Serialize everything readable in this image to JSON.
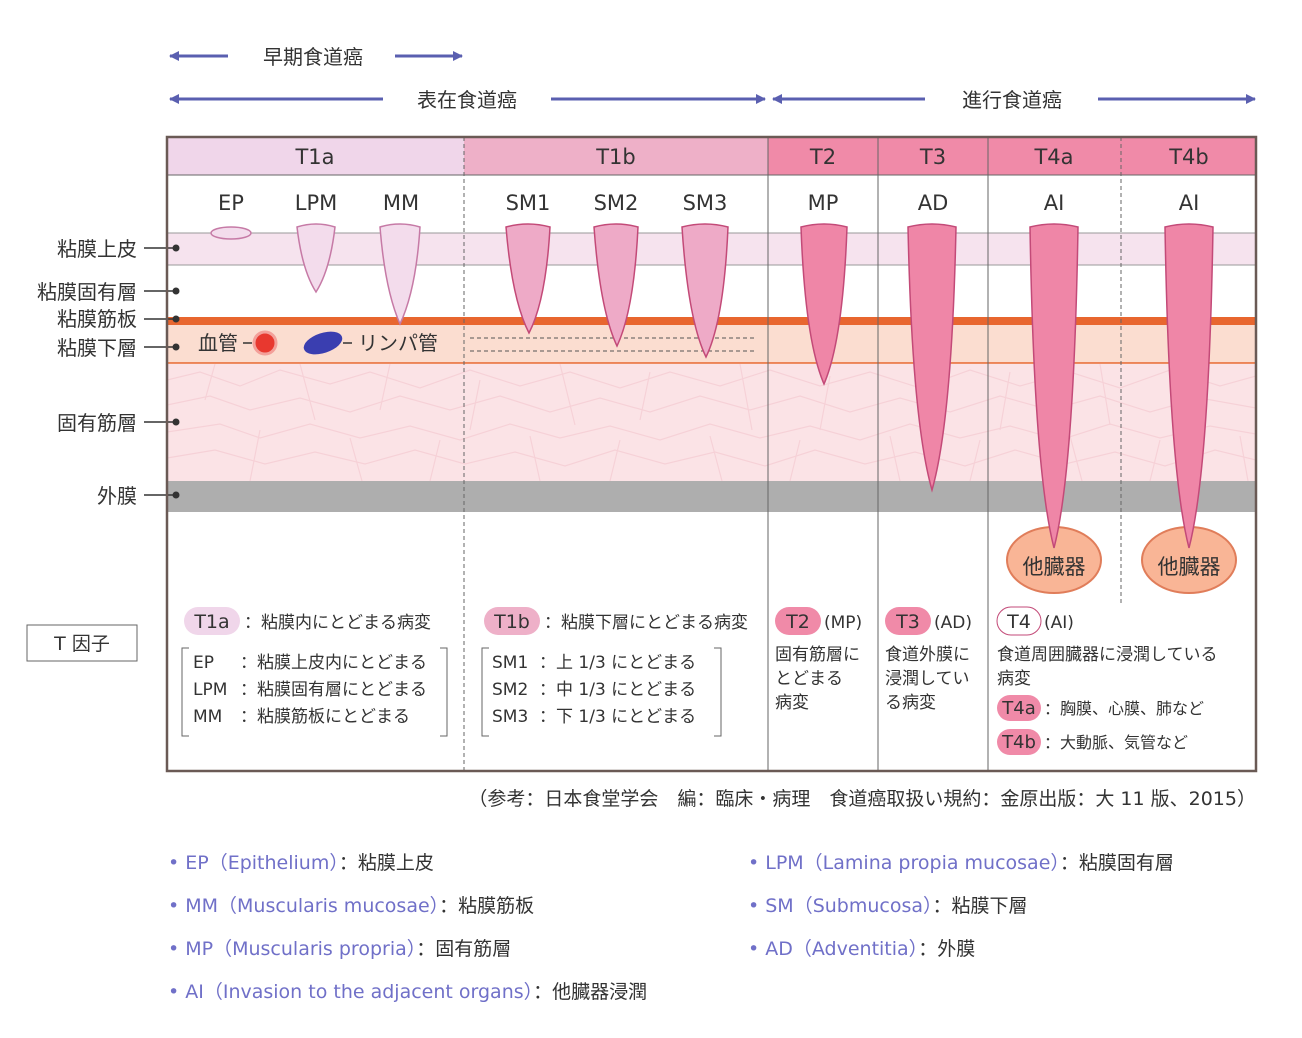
{
  "header": {
    "early_label": "早期食道癌",
    "superficial_label": "表在食道癌",
    "advanced_label": "進行食道癌"
  },
  "columns": {
    "t1a": "T1a",
    "t1b": "T1b",
    "t2": "T2",
    "t3": "T3",
    "t4a": "T4a",
    "t4b": "T4b"
  },
  "subheaders": {
    "ep": "EP",
    "lpm": "LPM",
    "mm": "MM",
    "sm1": "SM1",
    "sm2": "SM2",
    "sm3": "SM3",
    "mp": "MP",
    "ad": "AD",
    "ai_a": "AI",
    "ai_b": "AI"
  },
  "layers": {
    "epithelium": "粘膜上皮",
    "lamina_propria": "粘膜固有層",
    "muscularis_mucosae": "粘膜筋板",
    "submucosa": "粘膜下層",
    "muscularis_propria": "固有筋層",
    "adventitia": "外膜"
  },
  "vessels": {
    "blood": "血管",
    "lymph": "リンパ管"
  },
  "organ_label": "他臓器",
  "t_factor_label": "T 因子",
  "descriptions": {
    "t1a": {
      "badge": "T1a",
      "text": "：粘膜内にとどまる病変",
      "items": [
        {
          "code": "EP",
          "text": "：粘膜上皮内にとどまる"
        },
        {
          "code": "LPM",
          "text": "：粘膜固有層にとどまる"
        },
        {
          "code": "MM",
          "text": "：粘膜筋板にとどまる"
        }
      ]
    },
    "t1b": {
      "badge": "T1b",
      "text": "：粘膜下層にとどまる病変",
      "items": [
        {
          "code": "SM1",
          "text": "：上 1/3 にとどまる"
        },
        {
          "code": "SM2",
          "text": "：中 1/3 にとどまる"
        },
        {
          "code": "SM3",
          "text": "：下 1/3 にとどまる"
        }
      ]
    },
    "t2": {
      "badge": "T2",
      "abbr": "(MP)",
      "lines": [
        "固有筋層に",
        "とどまる",
        "病変"
      ]
    },
    "t3": {
      "badge": "T3",
      "abbr": "(AD)",
      "lines": [
        "食道外膜に",
        "浸潤してい",
        "る病変"
      ]
    },
    "t4": {
      "badge": "T4",
      "abbr": "(AI)",
      "lines": [
        "食道周囲臓器に浸潤している",
        "病変"
      ],
      "t4a_badge": "T4a",
      "t4a_text": "：胸膜、心膜、肺など",
      "t4b_badge": "T4b",
      "t4b_text": "：大動脈、気管など"
    }
  },
  "reference": "（参考：日本食堂学会　編：臨床・病理　食道癌取扱い規約：金原出版：大 11 版、2015）",
  "glossary": [
    {
      "term": "EP（Epithelium）",
      "meaning": "：粘膜上皮"
    },
    {
      "term": "LPM（Lamina propia mucosae）",
      "meaning": "：粘膜固有層"
    },
    {
      "term": "MM（Muscularis mucosae）",
      "meaning": "：粘膜筋板"
    },
    {
      "term": "SM（Submucosa）",
      "meaning": "：粘膜下層"
    },
    {
      "term": "MP（Muscularis propria）",
      "meaning": "：固有筋層"
    },
    {
      "term": "AD（Adventitia）",
      "meaning": "：外膜"
    },
    {
      "term": "AI（Invasion to the adjacent organs）",
      "meaning": "：他臓器浸潤"
    }
  ],
  "colors": {
    "arrow": "#5a5fb0",
    "t1a": "#f0d6ea",
    "t1b": "#eeb0c8",
    "advanced": "#f08aa8",
    "tumor_stroke": "#c34a78",
    "muscularis_mucosae_band": "#e8662f",
    "organ_fill": "#f9b596",
    "adventitia_band": "#aeaeae"
  }
}
